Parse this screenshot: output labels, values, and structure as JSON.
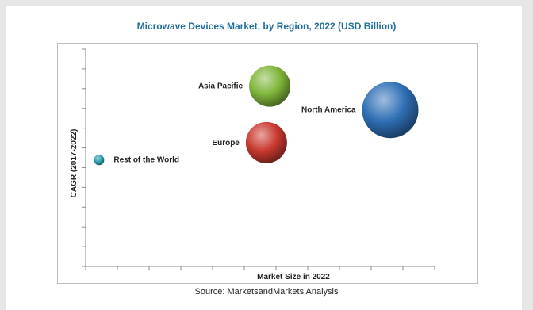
{
  "chart_data": {
    "type": "scatter",
    "title": "Microwave Devices Market, by Region, 2022 (USD Billion)",
    "xlabel": "Market Size in 2022",
    "ylabel": "CAGR (2017-2022)",
    "grid": false,
    "xlim": [
      0,
      10
    ],
    "ylim": [
      0,
      10
    ],
    "points": [
      {
        "label": "Asia Pacific",
        "x": 5.5,
        "y": 8.3,
        "size": 5.2,
        "color": "#7fb53a"
      },
      {
        "label": "North America",
        "x": 9.1,
        "y": 7.2,
        "size": 7.1,
        "color": "#2f6fb5"
      },
      {
        "label": "Europe",
        "x": 5.4,
        "y": 5.7,
        "size": 5.2,
        "color": "#c9392f"
      },
      {
        "label": "Rest of the World",
        "x": 0.4,
        "y": 4.9,
        "size": 1.3,
        "color": "#2a9fb0"
      }
    ]
  },
  "footer": {
    "source": "Source: MarketsandMarkets Analysis"
  }
}
